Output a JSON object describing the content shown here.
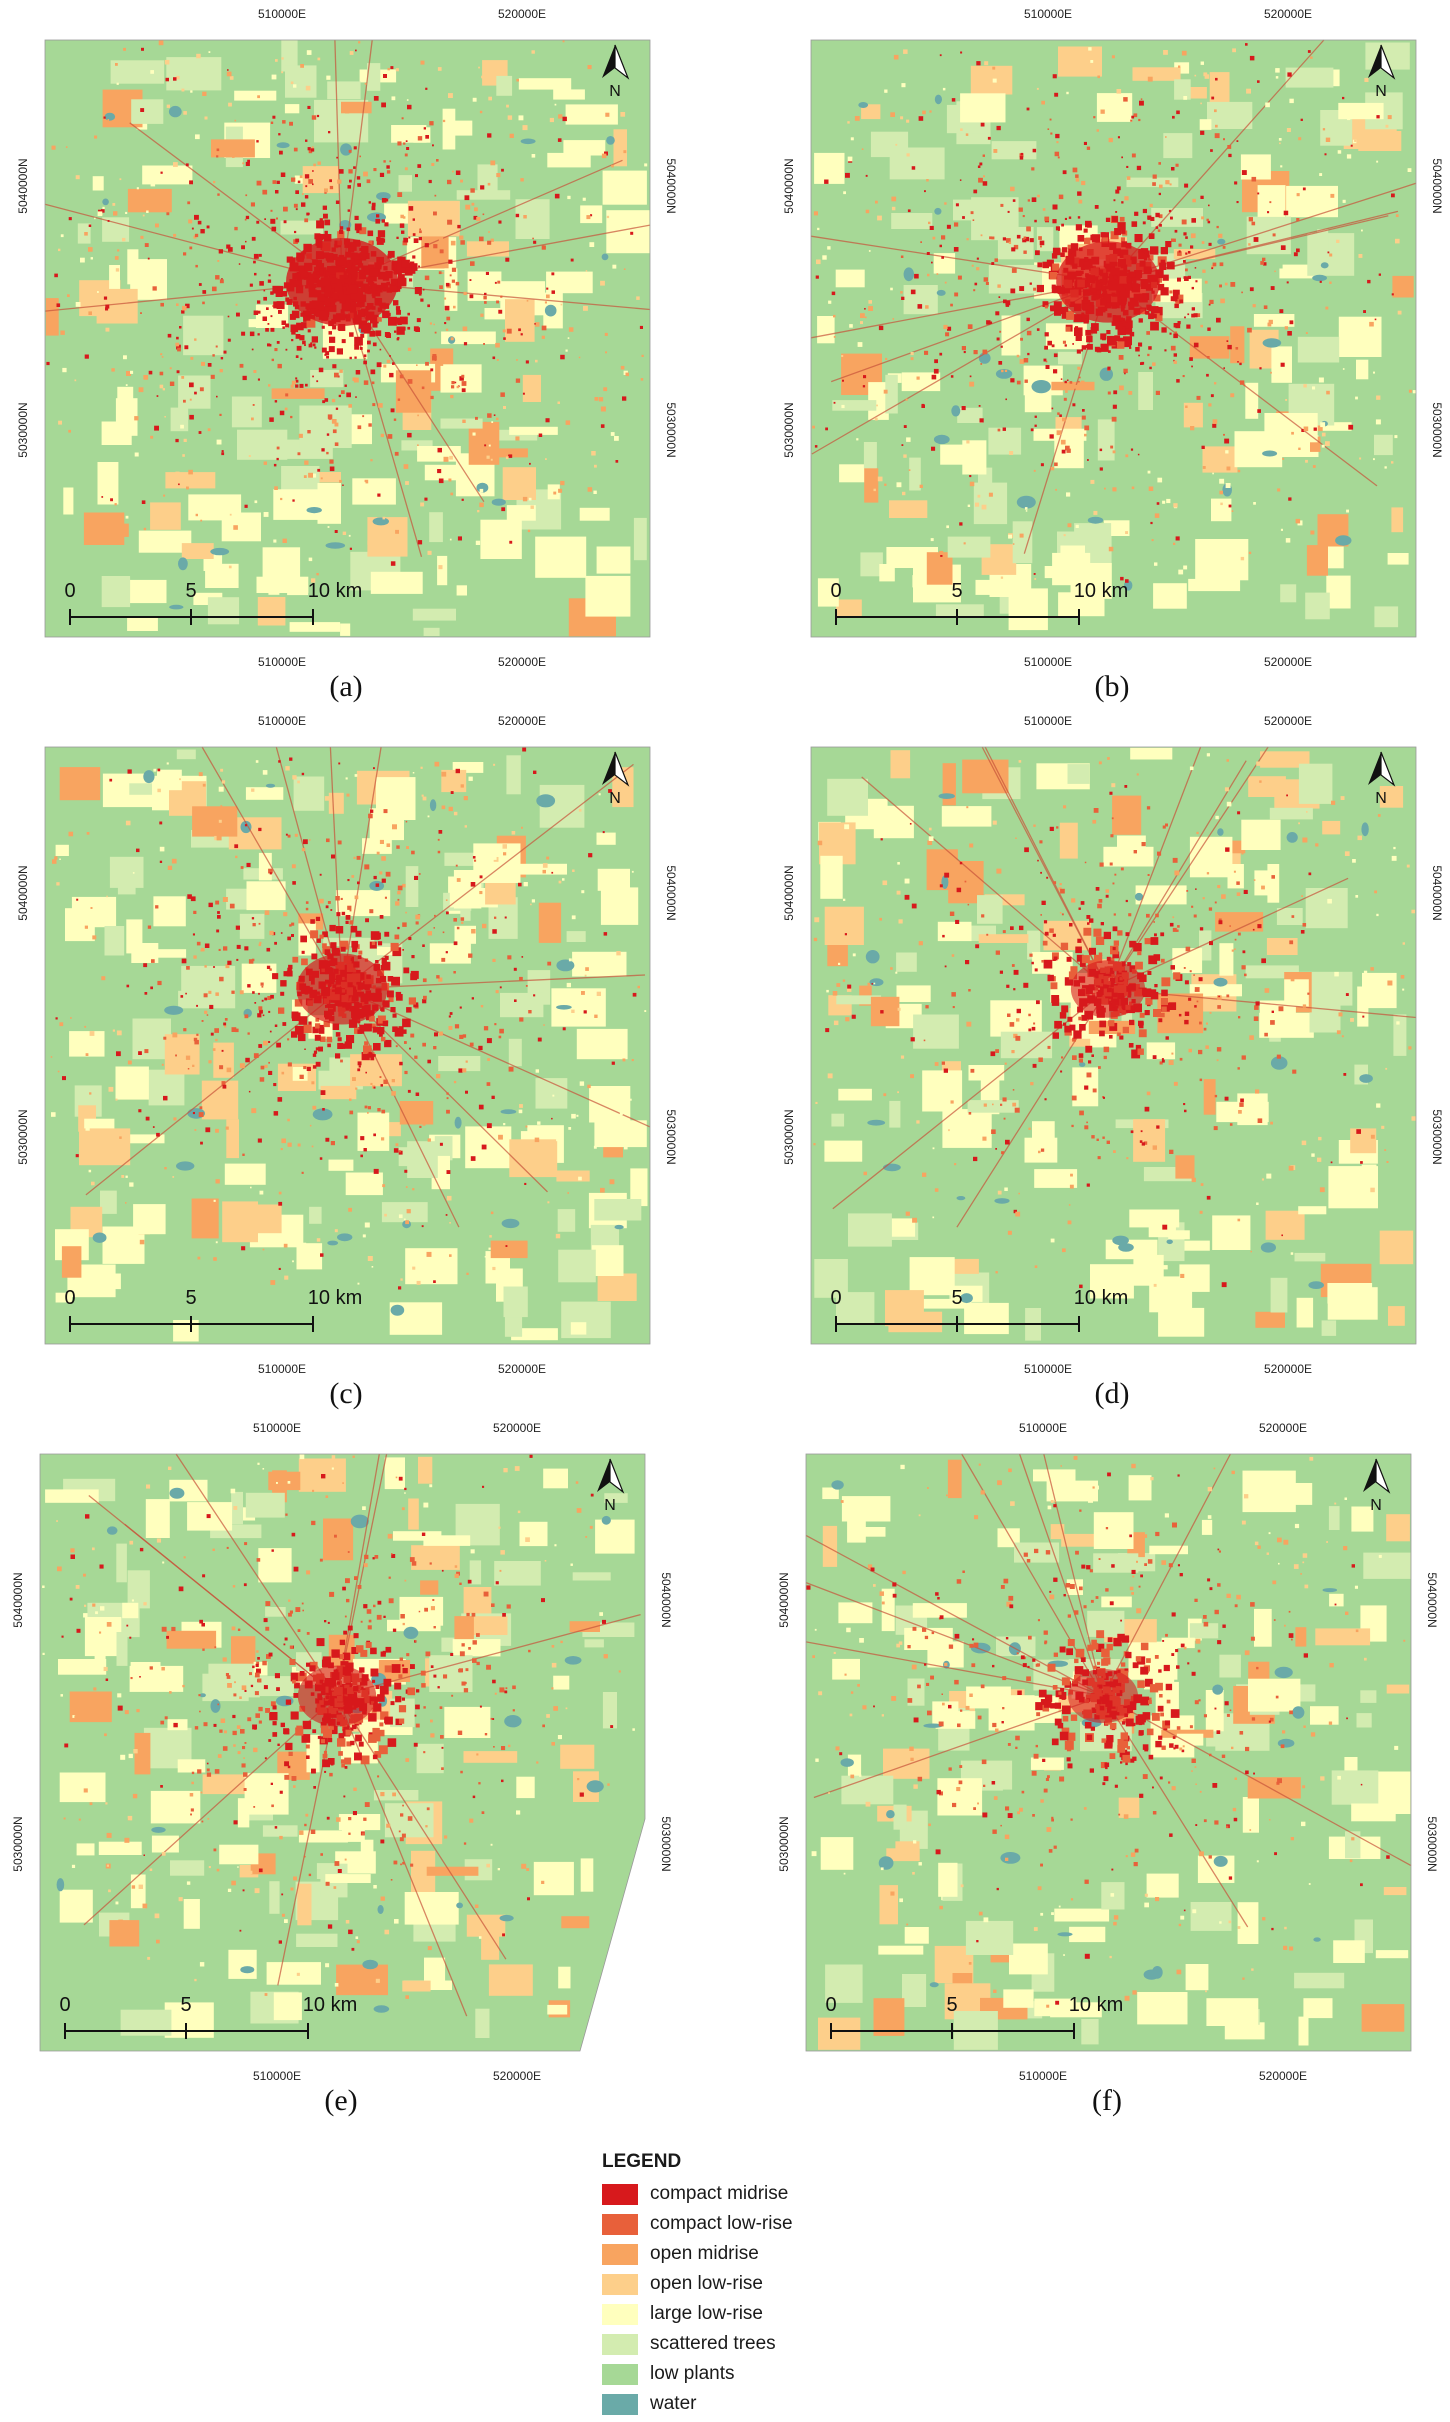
{
  "class_colors": {
    "compact_midrise": "#d7191c",
    "compact_lowrise": "#e8603a",
    "open_midrise": "#f8a460",
    "open_lowrise": "#fdcf8a",
    "large_lowrise": "#ffffbe",
    "scattered_trees": "#d3ecb0",
    "low_plants": "#a6d896",
    "water": "#6aaaa8",
    "road": "#c8533a"
  },
  "north_label": "N",
  "scale_bar": {
    "labels": [
      "0",
      "5",
      "10 km"
    ]
  },
  "panels": [
    {
      "id": "a",
      "caption": "(a)",
      "x_ticks": [
        "510000E",
        "520000E"
      ],
      "y_ticks": [
        "5040000N",
        "5030000N"
      ]
    },
    {
      "id": "b",
      "caption": "(b)",
      "x_ticks": [
        "510000E",
        "520000E"
      ],
      "y_ticks": [
        "5040000N",
        "5030000N"
      ]
    },
    {
      "id": "c",
      "caption": "(c)",
      "x_ticks": [
        "510000E",
        "520000E"
      ],
      "y_ticks": [
        "5040000N",
        "5030000N"
      ]
    },
    {
      "id": "d",
      "caption": "(d)",
      "x_ticks": [
        "510000E",
        "520000E"
      ],
      "y_ticks": [
        "5040000N",
        "5030000N"
      ]
    },
    {
      "id": "e",
      "caption": "(e)",
      "x_ticks": [
        "510000E",
        "520000E"
      ],
      "y_ticks": [
        "5040000N",
        "5030000N"
      ]
    },
    {
      "id": "f",
      "caption": "(f)",
      "x_ticks": [
        "510000E",
        "520000E"
      ],
      "y_ticks": [
        "5040000N",
        "5030000N"
      ]
    }
  ],
  "legend": {
    "title": "LEGEND",
    "items": [
      {
        "label": "compact midrise",
        "color": "#d7191c"
      },
      {
        "label": "compact low-rise",
        "color": "#e8603a"
      },
      {
        "label": "open midrise",
        "color": "#f8a460"
      },
      {
        "label": "open low-rise",
        "color": "#fdcf8a"
      },
      {
        "label": "large low-rise",
        "color": "#ffffbe"
      },
      {
        "label": "scattered trees",
        "color": "#d3ecb0"
      },
      {
        "label": "low plants",
        "color": "#a6d896"
      },
      {
        "label": "water",
        "color": "#6aaaa8"
      }
    ]
  }
}
